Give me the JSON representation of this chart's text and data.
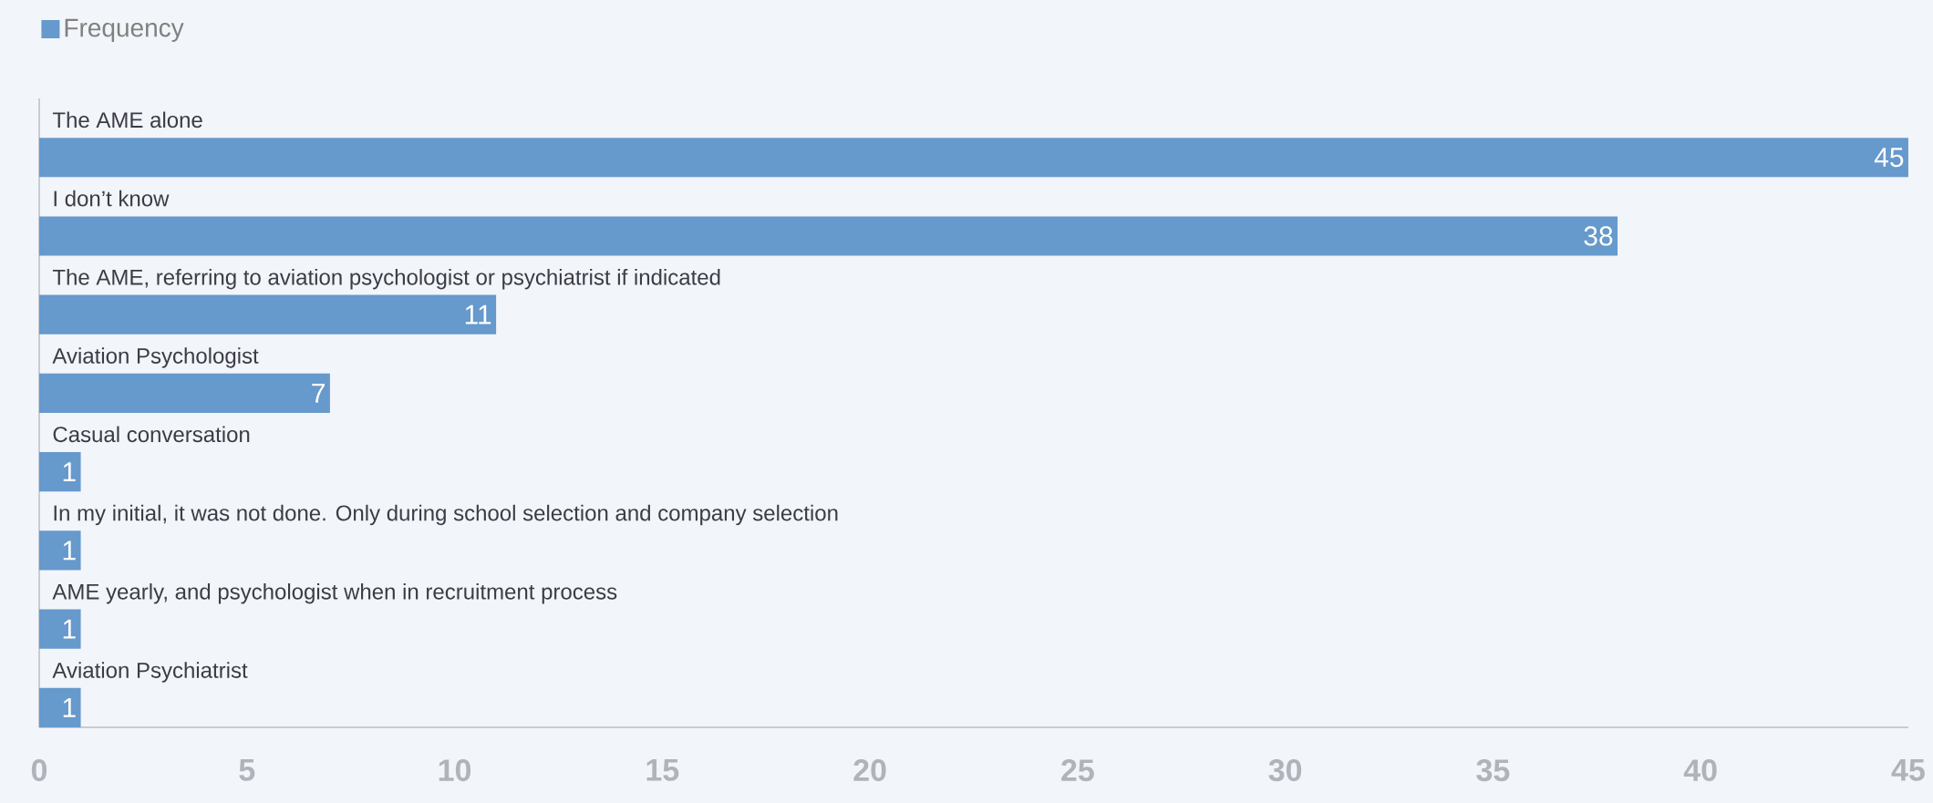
{
  "chart_data": {
    "type": "bar",
    "orientation": "horizontal",
    "categories": [
      "The AME alone",
      "I don’t know",
      "The AME, referring to aviation psychologist or psychiatrist if indicated",
      "Aviation Psychologist",
      "Casual conversation",
      "In my initial, it was not done. Only during school selection and company selection",
      "AME yearly, and psychologist when in recruitment process",
      "Aviation Psychiatrist"
    ],
    "series": [
      {
        "name": "Frequency",
        "color": "#6699cc",
        "values": [
          45,
          38,
          11,
          7,
          1,
          1,
          1,
          1
        ]
      }
    ],
    "xlim": [
      0,
      45
    ],
    "xticks": [
      0,
      5,
      10,
      15,
      20,
      25,
      30,
      35,
      40,
      45
    ],
    "data_labels": true,
    "legend": "top left",
    "grid": false
  }
}
